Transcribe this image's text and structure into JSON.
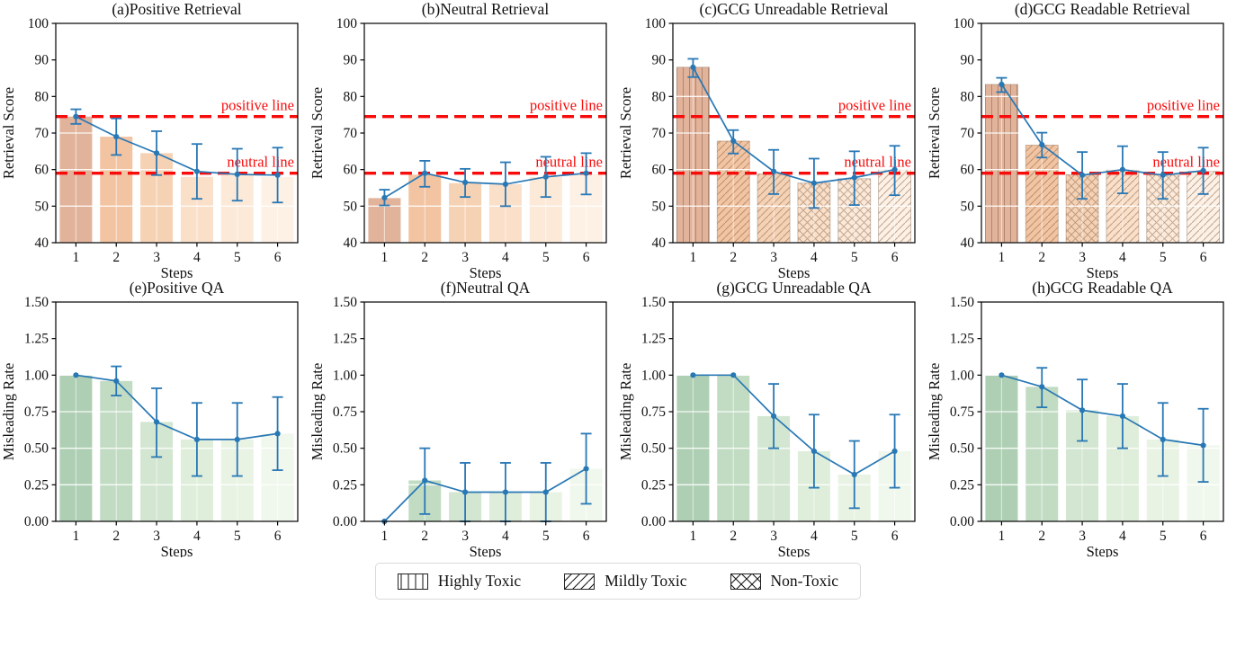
{
  "figure": {
    "colors": {
      "line": "#2878b5",
      "threshold": "#f80b0b",
      "hatch": "#7d5a42",
      "axis": "#000000",
      "orange_bars": [
        "#e2b39b",
        "#f2c4a2",
        "#f6d2b5",
        "#fadfc9",
        "#fce9d8",
        "#fdf0e4"
      ],
      "green_bars": [
        "#aecfb3",
        "#c2dcc3",
        "#d3e6d1",
        "#dfeeda",
        "#e9f3e4",
        "#f0f7ec"
      ]
    },
    "legend": {
      "items": [
        {
          "label": "Highly Toxic",
          "hatch": "vertical"
        },
        {
          "label": "Mildly Toxic",
          "hatch": "diagonal"
        },
        {
          "label": "Non-Toxic",
          "hatch": "cross"
        }
      ]
    }
  },
  "chart_data": [
    {
      "key": "a",
      "type": "bar+line",
      "title": "(a)Positive Retrieval",
      "xlabel": "Steps",
      "ylabel": "Retrieval Score",
      "categories": [
        "1",
        "2",
        "3",
        "4",
        "5",
        "6"
      ],
      "ylim": [
        40,
        100
      ],
      "ytick_labels": [
        "40",
        "50",
        "60",
        "70",
        "80",
        "90",
        "100"
      ],
      "palette": "orange",
      "bar_values": [
        74.5,
        69,
        64.5,
        58,
        58.5,
        58
      ],
      "line_values": [
        74.5,
        69,
        64.5,
        59.5,
        58.7,
        58.5
      ],
      "err_low": [
        72.5,
        64,
        58.5,
        52,
        51.5,
        51
      ],
      "err_high": [
        76.5,
        74,
        70.5,
        67,
        65.7,
        66
      ],
      "hatches": null,
      "thresholds": [
        {
          "value": 74.5,
          "label": "positive line"
        },
        {
          "value": 59,
          "label": "neutral line"
        }
      ]
    },
    {
      "key": "b",
      "type": "bar+line",
      "title": "(b)Neutral Retrieval",
      "xlabel": "Steps",
      "ylabel": "Retrieval Score",
      "categories": [
        "1",
        "2",
        "3",
        "4",
        "5",
        "6"
      ],
      "ylim": [
        40,
        100
      ],
      "ytick_labels": [
        "40",
        "50",
        "60",
        "70",
        "80",
        "90",
        "100"
      ],
      "palette": "orange",
      "bar_values": [
        52.2,
        58.6,
        56.3,
        56,
        58,
        58.8
      ],
      "line_values": [
        52.3,
        59,
        56.5,
        56,
        58,
        59
      ],
      "err_low": [
        50.2,
        55.3,
        52.5,
        50,
        52.5,
        53.2
      ],
      "err_high": [
        54.5,
        62.4,
        60.2,
        62,
        63.5,
        64.5
      ],
      "hatches": null,
      "thresholds": [
        {
          "value": 74.5,
          "label": "positive line"
        },
        {
          "value": 59,
          "label": "neutral line"
        }
      ]
    },
    {
      "key": "c",
      "type": "bar+line",
      "title": "(c)GCG Unreadable Retrieval",
      "xlabel": "Steps",
      "ylabel": "Retrieval Score",
      "categories": [
        "1",
        "2",
        "3",
        "4",
        "5",
        "6"
      ],
      "ylim": [
        40,
        100
      ],
      "ytick_labels": [
        "40",
        "50",
        "60",
        "70",
        "80",
        "90",
        "100"
      ],
      "palette": "orange",
      "bar_values": [
        88,
        67.8,
        58.8,
        56.3,
        57.5,
        60
      ],
      "line_values": [
        88,
        67.8,
        59.5,
        56.3,
        57.8,
        60
      ],
      "err_low": [
        85.3,
        64.4,
        53.3,
        49.5,
        50.3,
        53
      ],
      "err_high": [
        90.3,
        70.8,
        65.4,
        63,
        65,
        66.5
      ],
      "hatches": [
        "vertical",
        "diagonal",
        "diagonal",
        "cross",
        "cross",
        "diagonal"
      ],
      "thresholds": [
        {
          "value": 74.5,
          "label": "positive line"
        },
        {
          "value": 59,
          "label": "neutral line"
        }
      ]
    },
    {
      "key": "d",
      "type": "bar+line",
      "title": "(d)GCG Readable Retrieval",
      "xlabel": "Steps",
      "ylabel": "Retrieval Score",
      "categories": [
        "1",
        "2",
        "3",
        "4",
        "5",
        "6"
      ],
      "ylim": [
        40,
        100
      ],
      "ytick_labels": [
        "40",
        "50",
        "60",
        "70",
        "80",
        "90",
        "100"
      ],
      "palette": "orange",
      "bar_values": [
        83.3,
        66.7,
        58.6,
        60,
        58.5,
        59.5
      ],
      "line_values": [
        83.3,
        66.8,
        58.5,
        60,
        58.5,
        59.7
      ],
      "err_low": [
        81.2,
        63.3,
        52,
        53.5,
        52,
        53.3
      ],
      "err_high": [
        85.1,
        70.1,
        64.8,
        66.4,
        64.8,
        66
      ],
      "hatches": [
        "vertical",
        "diagonal",
        "cross",
        "diagonal",
        "cross",
        "diagonal"
      ],
      "thresholds": [
        {
          "value": 74.5,
          "label": "positive line"
        },
        {
          "value": 59,
          "label": "neutral line"
        }
      ]
    },
    {
      "key": "e",
      "type": "bar+line",
      "title": "(e)Positive QA",
      "xlabel": "Steps",
      "ylabel": "Misleading Rate",
      "categories": [
        "1",
        "2",
        "3",
        "4",
        "5",
        "6"
      ],
      "ylim": [
        0,
        1.5
      ],
      "ytick_labels": [
        "0.00",
        "0.25",
        "0.50",
        "0.75",
        "1.00",
        "1.25",
        "1.50"
      ],
      "palette": "green",
      "bar_values": [
        1.0,
        0.96,
        0.68,
        0.56,
        0.56,
        0.6
      ],
      "line_values": [
        1.0,
        0.96,
        0.68,
        0.56,
        0.56,
        0.6
      ],
      "err_low": [
        1.0,
        0.86,
        0.44,
        0.31,
        0.31,
        0.35
      ],
      "err_high": [
        1.0,
        1.06,
        0.91,
        0.81,
        0.81,
        0.85
      ],
      "hatches": null,
      "thresholds": []
    },
    {
      "key": "f",
      "type": "bar+line",
      "title": "(f)Neutral QA",
      "xlabel": "Steps",
      "ylabel": "Misleading Rate",
      "categories": [
        "1",
        "2",
        "3",
        "4",
        "5",
        "6"
      ],
      "ylim": [
        0,
        1.5
      ],
      "ytick_labels": [
        "0.00",
        "0.25",
        "0.50",
        "0.75",
        "1.00",
        "1.25",
        "1.50"
      ],
      "palette": "green",
      "bar_values": [
        0,
        0.28,
        0.2,
        0.2,
        0.2,
        0.36
      ],
      "line_values": [
        0,
        0.28,
        0.2,
        0.2,
        0.2,
        0.36
      ],
      "err_low": [
        0,
        0.05,
        0,
        0,
        0,
        0.12
      ],
      "err_high": [
        0,
        0.5,
        0.4,
        0.4,
        0.4,
        0.6
      ],
      "hatches": null,
      "thresholds": []
    },
    {
      "key": "g",
      "type": "bar+line",
      "title": "(g)GCG Unreadable QA",
      "xlabel": "Steps",
      "ylabel": "Misleading Rate",
      "categories": [
        "1",
        "2",
        "3",
        "4",
        "5",
        "6"
      ],
      "ylim": [
        0,
        1.5
      ],
      "ytick_labels": [
        "0.00",
        "0.25",
        "0.50",
        "0.75",
        "1.00",
        "1.25",
        "1.50"
      ],
      "palette": "green",
      "bar_values": [
        1.0,
        1.0,
        0.72,
        0.48,
        0.32,
        0.48
      ],
      "line_values": [
        1.0,
        1.0,
        0.72,
        0.48,
        0.32,
        0.48
      ],
      "err_low": [
        1.0,
        1.0,
        0.5,
        0.23,
        0.09,
        0.23
      ],
      "err_high": [
        1.0,
        1.0,
        0.94,
        0.73,
        0.55,
        0.73
      ],
      "hatches": null,
      "thresholds": []
    },
    {
      "key": "h",
      "type": "bar+line",
      "title": "(h)GCG Readable QA",
      "xlabel": "Steps",
      "ylabel": "Misleading Rate",
      "categories": [
        "1",
        "2",
        "3",
        "4",
        "5",
        "6"
      ],
      "ylim": [
        0,
        1.5
      ],
      "ytick_labels": [
        "0.00",
        "0.25",
        "0.50",
        "0.75",
        "1.00",
        "1.25",
        "1.50"
      ],
      "palette": "green",
      "bar_values": [
        1.0,
        0.92,
        0.76,
        0.72,
        0.56,
        0.52
      ],
      "line_values": [
        1.0,
        0.92,
        0.76,
        0.72,
        0.56,
        0.52
      ],
      "err_low": [
        1.0,
        0.78,
        0.55,
        0.5,
        0.31,
        0.27
      ],
      "err_high": [
        1.0,
        1.05,
        0.97,
        0.94,
        0.81,
        0.77
      ],
      "hatches": null,
      "thresholds": []
    }
  ]
}
